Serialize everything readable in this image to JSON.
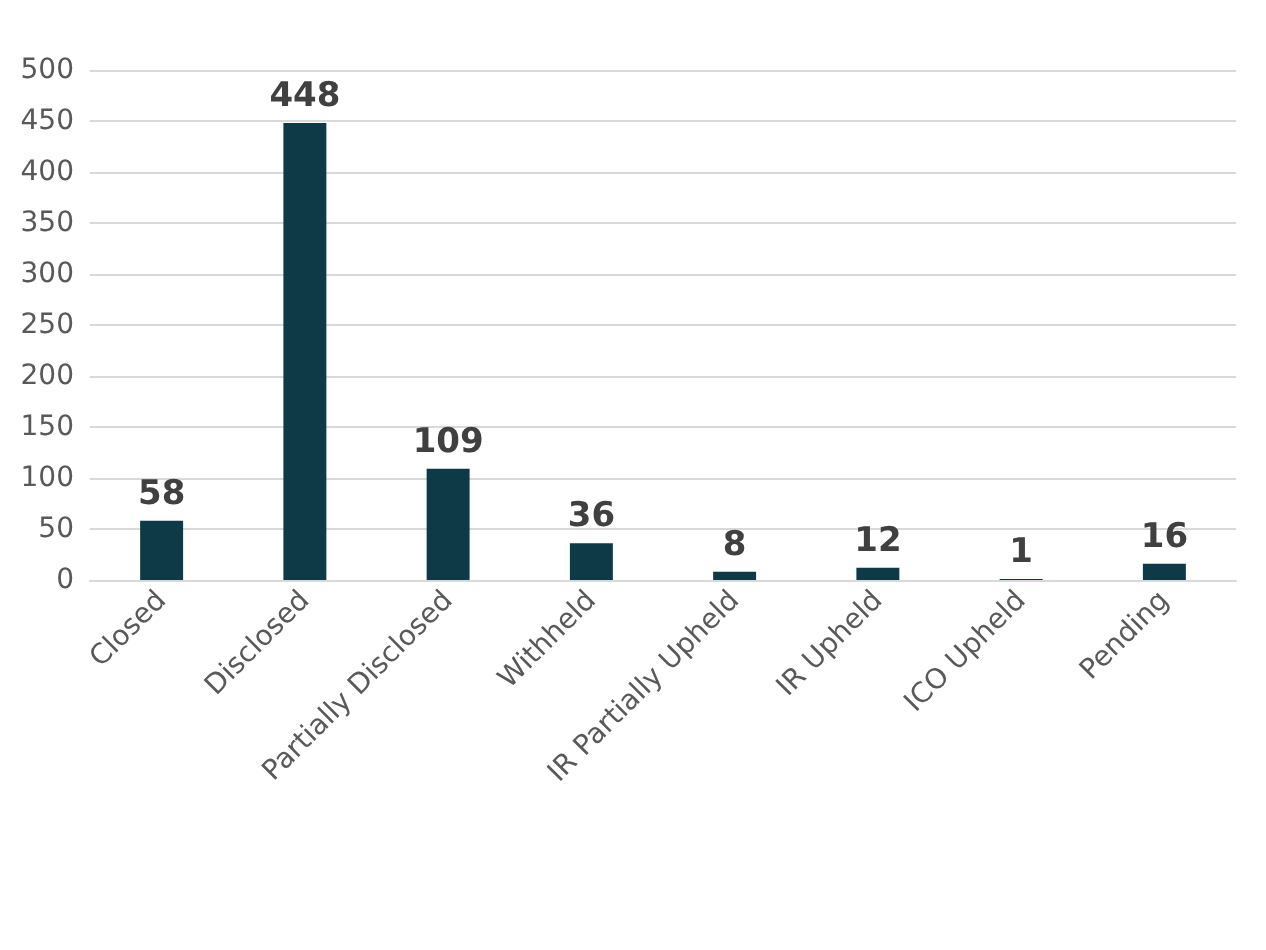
{
  "chart_data": {
    "type": "bar",
    "categories": [
      "Closed",
      "Disclosed",
      "Partially Disclosed",
      "Withheld",
      "IR Partially Upheld",
      "IR Upheld",
      "ICO Upheld",
      "Pending"
    ],
    "values": [
      58,
      448,
      109,
      36,
      8,
      12,
      1,
      16
    ],
    "color": "#0e3a47",
    "ylim": [
      0,
      500
    ],
    "yticks": [
      0,
      50,
      100,
      150,
      200,
      250,
      300,
      350,
      400,
      450,
      500
    ],
    "grid": "y",
    "data_labels": true
  }
}
